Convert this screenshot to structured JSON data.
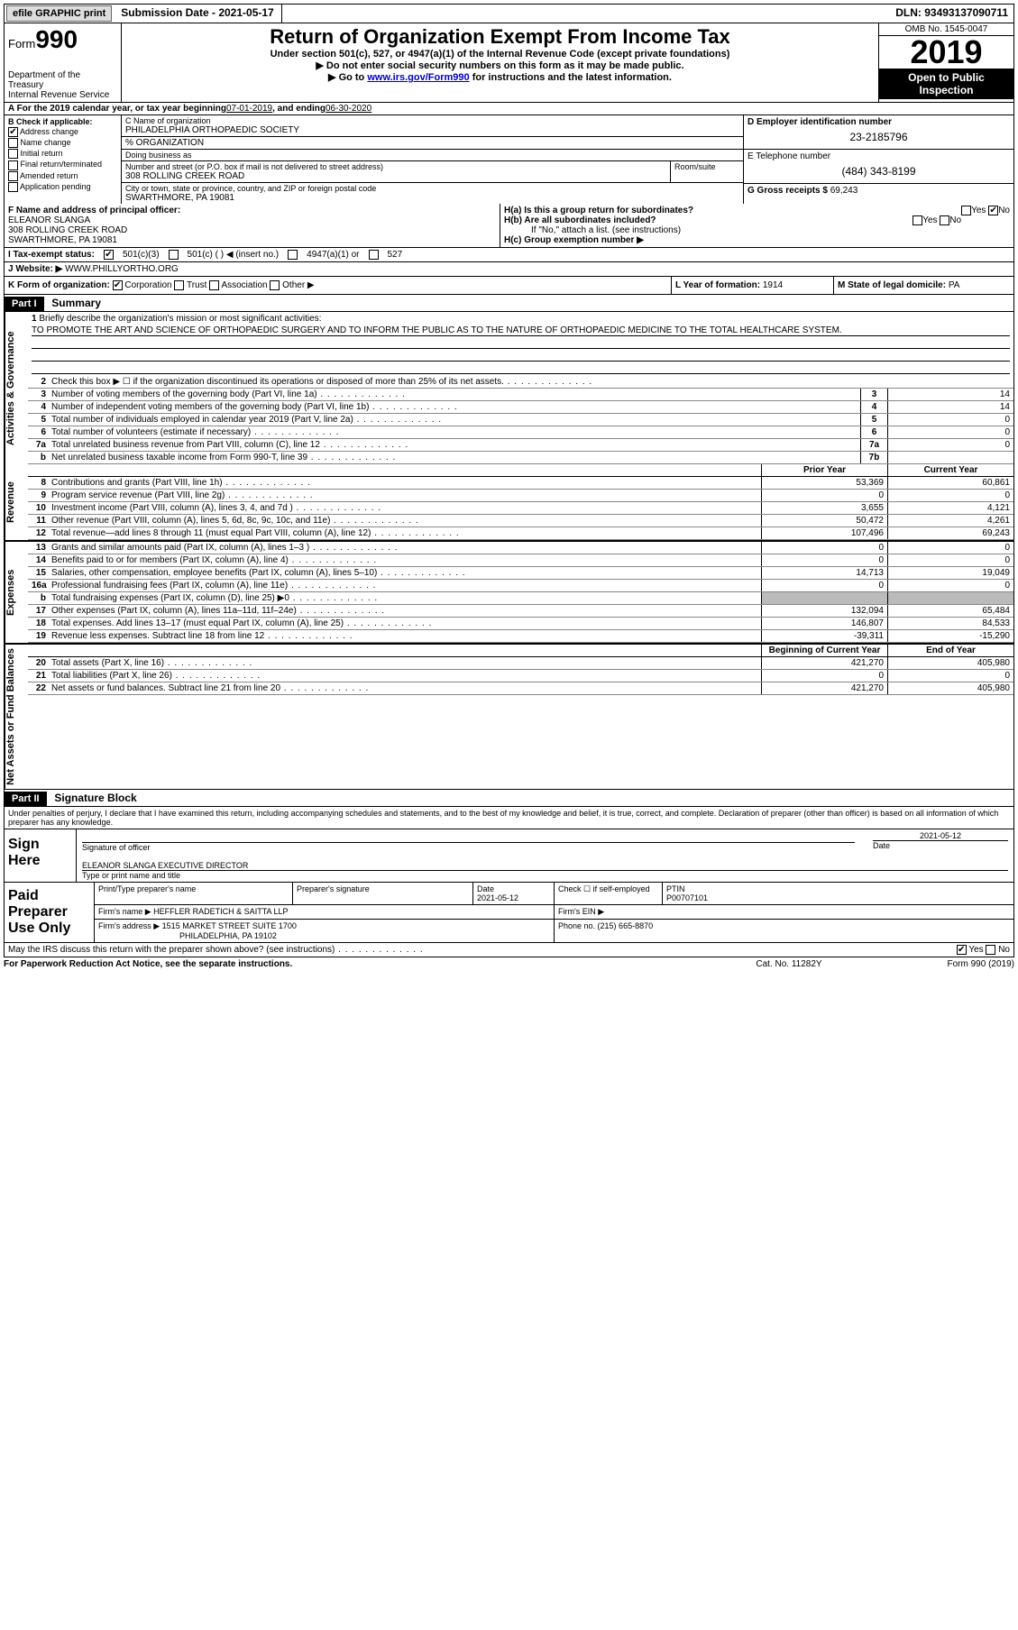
{
  "topbar": {
    "btn_efile": "efile GRAPHIC print",
    "sub_date_label": "Submission Date - ",
    "sub_date": "2021-05-17",
    "dln_label": "DLN: ",
    "dln": "93493137090711"
  },
  "header": {
    "form_word": "Form",
    "form_num": "990",
    "dept1": "Department of the Treasury",
    "dept2": "Internal Revenue Service",
    "title": "Return of Organization Exempt From Income Tax",
    "sub1": "Under section 501(c), 527, or 4947(a)(1) of the Internal Revenue Code (except private foundations)",
    "sub2": "▶ Do not enter social security numbers on this form as it may be made public.",
    "sub3a": "▶ Go to ",
    "sub3_link": "www.irs.gov/Form990",
    "sub3b": " for instructions and the latest information.",
    "omb": "OMB No. 1545-0047",
    "year": "2019",
    "open": "Open to Public Inspection"
  },
  "line_a": {
    "text": "A For the 2019 calendar year, or tax year beginning ",
    "begin": "07-01-2019",
    "mid": " , and ending ",
    "end": "06-30-2020"
  },
  "boxB": {
    "label": "B Check if applicable:",
    "addr_change": "Address change",
    "name_change": "Name change",
    "initial": "Initial return",
    "final": "Final return/terminated",
    "amended": "Amended return",
    "app_pending": "Application pending"
  },
  "boxC": {
    "name_label": "C Name of organization",
    "name": "PHILADELPHIA ORTHOPAEDIC SOCIETY",
    "pct_label": "% ORGANIZATION",
    "dba_label": "Doing business as",
    "street_label": "Number and street (or P.O. box if mail is not delivered to street address)",
    "room_label": "Room/suite",
    "street": "308 ROLLING CREEK ROAD",
    "city_label": "City or town, state or province, country, and ZIP or foreign postal code",
    "city": "SWARTHMORE, PA  19081"
  },
  "boxD": {
    "label": "D Employer identification number",
    "val": "23-2185796"
  },
  "boxE": {
    "label": "E Telephone number",
    "val": "(484) 343-8199"
  },
  "boxG": {
    "label": "G Gross receipts $ ",
    "val": "69,243"
  },
  "boxF": {
    "label": "F Name and address of principal officer:",
    "name": "ELEANOR SLANGA",
    "street": "308 ROLLING CREEK ROAD",
    "city": "SWARTHMORE, PA  19081"
  },
  "boxH": {
    "ha": "H(a) Is this a group return for subordinates?",
    "hb": "H(b) Are all subordinates included?",
    "hb_note": "If \"No,\" attach a list. (see instructions)",
    "hc": "H(c) Group exemption number ▶",
    "yes": "Yes",
    "no": "No"
  },
  "boxI": {
    "label": "I Tax-exempt status:",
    "o1": "501(c)(3)",
    "o2": "501(c) ( ) ◀ (insert no.)",
    "o3": "4947(a)(1) or",
    "o4": "527"
  },
  "boxJ": {
    "label": "J Website: ▶ ",
    "val": "WWW.PHILLYORTHO.ORG"
  },
  "boxK": {
    "label": "K Form of organization:",
    "corp": "Corporation",
    "trust": "Trust",
    "assoc": "Association",
    "other": "Other ▶"
  },
  "boxL": {
    "label": "L Year of formation: ",
    "val": "1914"
  },
  "boxM": {
    "label": "M State of legal domicile: ",
    "val": "PA"
  },
  "part1": {
    "hdr": "Part I",
    "title": "Summary"
  },
  "vtabs": {
    "ag": "Activities & Governance",
    "rev": "Revenue",
    "exp": "Expenses",
    "nafb": "Net Assets or Fund Balances"
  },
  "brief": {
    "num": "1",
    "label": "Briefly describe the organization's mission or most significant activities:",
    "text": "TO PROMOTE THE ART AND SCIENCE OF ORTHOPAEDIC SURGERY AND TO INFORM THE PUBLIC AS TO THE NATURE OF ORTHOPAEDIC MEDICINE TO THE TOTAL HEALTHCARE SYSTEM."
  },
  "lines_ag": [
    {
      "n": "2",
      "d": "Check this box ▶ ☐ if the organization discontinued its operations or disposed of more than 25% of its net assets."
    },
    {
      "n": "3",
      "d": "Number of voting members of the governing body (Part VI, line 1a)",
      "box": "3",
      "v": "14"
    },
    {
      "n": "4",
      "d": "Number of independent voting members of the governing body (Part VI, line 1b)",
      "box": "4",
      "v": "14"
    },
    {
      "n": "5",
      "d": "Total number of individuals employed in calendar year 2019 (Part V, line 2a)",
      "box": "5",
      "v": "0"
    },
    {
      "n": "6",
      "d": "Total number of volunteers (estimate if necessary)",
      "box": "6",
      "v": "0"
    },
    {
      "n": "7a",
      "d": "Total unrelated business revenue from Part VIII, column (C), line 12",
      "box": "7a",
      "v": "0"
    },
    {
      "n": "b",
      "d": "Net unrelated business taxable income from Form 990-T, line 39",
      "box": "7b",
      "v": ""
    }
  ],
  "col_hdrs": {
    "py": "Prior Year",
    "cy": "Current Year",
    "boy": "Beginning of Current Year",
    "eoy": "End of Year"
  },
  "lines_rev": [
    {
      "n": "8",
      "d": "Contributions and grants (Part VIII, line 1h)",
      "py": "53,369",
      "cy": "60,861"
    },
    {
      "n": "9",
      "d": "Program service revenue (Part VIII, line 2g)",
      "py": "0",
      "cy": "0"
    },
    {
      "n": "10",
      "d": "Investment income (Part VIII, column (A), lines 3, 4, and 7d )",
      "py": "3,655",
      "cy": "4,121"
    },
    {
      "n": "11",
      "d": "Other revenue (Part VIII, column (A), lines 5, 6d, 8c, 9c, 10c, and 11e)",
      "py": "50,472",
      "cy": "4,261"
    },
    {
      "n": "12",
      "d": "Total revenue—add lines 8 through 11 (must equal Part VIII, column (A), line 12)",
      "py": "107,496",
      "cy": "69,243"
    }
  ],
  "lines_exp": [
    {
      "n": "13",
      "d": "Grants and similar amounts paid (Part IX, column (A), lines 1–3 )",
      "py": "0",
      "cy": "0"
    },
    {
      "n": "14",
      "d": "Benefits paid to or for members (Part IX, column (A), line 4)",
      "py": "0",
      "cy": "0"
    },
    {
      "n": "15",
      "d": "Salaries, other compensation, employee benefits (Part IX, column (A), lines 5–10)",
      "py": "14,713",
      "cy": "19,049"
    },
    {
      "n": "16a",
      "d": "Professional fundraising fees (Part IX, column (A), line 11e)",
      "py": "0",
      "cy": "0"
    },
    {
      "n": "b",
      "d": "Total fundraising expenses (Part IX, column (D), line 25) ▶0",
      "shade": true
    },
    {
      "n": "17",
      "d": "Other expenses (Part IX, column (A), lines 11a–11d, 11f–24e)",
      "py": "132,094",
      "cy": "65,484"
    },
    {
      "n": "18",
      "d": "Total expenses. Add lines 13–17 (must equal Part IX, column (A), line 25)",
      "py": "146,807",
      "cy": "84,533"
    },
    {
      "n": "19",
      "d": "Revenue less expenses. Subtract line 18 from line 12",
      "py": "-39,311",
      "cy": "-15,290"
    }
  ],
  "lines_na": [
    {
      "n": "20",
      "d": "Total assets (Part X, line 16)",
      "py": "421,270",
      "cy": "405,980"
    },
    {
      "n": "21",
      "d": "Total liabilities (Part X, line 26)",
      "py": "0",
      "cy": "0"
    },
    {
      "n": "22",
      "d": "Net assets or fund balances. Subtract line 21 from line 20",
      "py": "421,270",
      "cy": "405,980"
    }
  ],
  "part2": {
    "hdr": "Part II",
    "title": "Signature Block"
  },
  "penalty": "Under penalties of perjury, I declare that I have examined this return, including accompanying schedules and statements, and to the best of my knowledge and belief, it is true, correct, and complete. Declaration of preparer (other than officer) is based on all information of which preparer has any knowledge.",
  "sign": {
    "here": "Sign Here",
    "sig_label": "Signature of officer",
    "date_label": "Date",
    "date": "2021-05-12",
    "name": "ELEANOR SLANGA  EXECUTIVE DIRECTOR",
    "name_label": "Type or print name and title"
  },
  "prep": {
    "label": "Paid Preparer Use Only",
    "pname_label": "Print/Type preparer's name",
    "psig_label": "Preparer's signature",
    "pdate_label": "Date",
    "pdate": "2021-05-12",
    "pself_label": "Check ☐ if self-employed",
    "ptin_label": "PTIN",
    "ptin": "P00707101",
    "firm_name_label": "Firm's name    ▶",
    "firm_name": "HEFFLER RADETICH & SAITTA LLP",
    "firm_ein_label": "Firm's EIN ▶",
    "firm_addr_label": "Firm's address ▶",
    "firm_addr1": "1515 MARKET STREET SUITE 1700",
    "firm_addr2": "PHILADELPHIA, PA  19102",
    "phone_label": "Phone no. ",
    "phone": "(215) 665-8870"
  },
  "discuss": {
    "q": "May the IRS discuss this return with the preparer shown above? (see instructions)",
    "yes": "Yes",
    "no": "No"
  },
  "footer": {
    "f1": "For Paperwork Reduction Act Notice, see the separate instructions.",
    "f2": "Cat. No. 11282Y",
    "f3": "Form 990 (2019)"
  }
}
